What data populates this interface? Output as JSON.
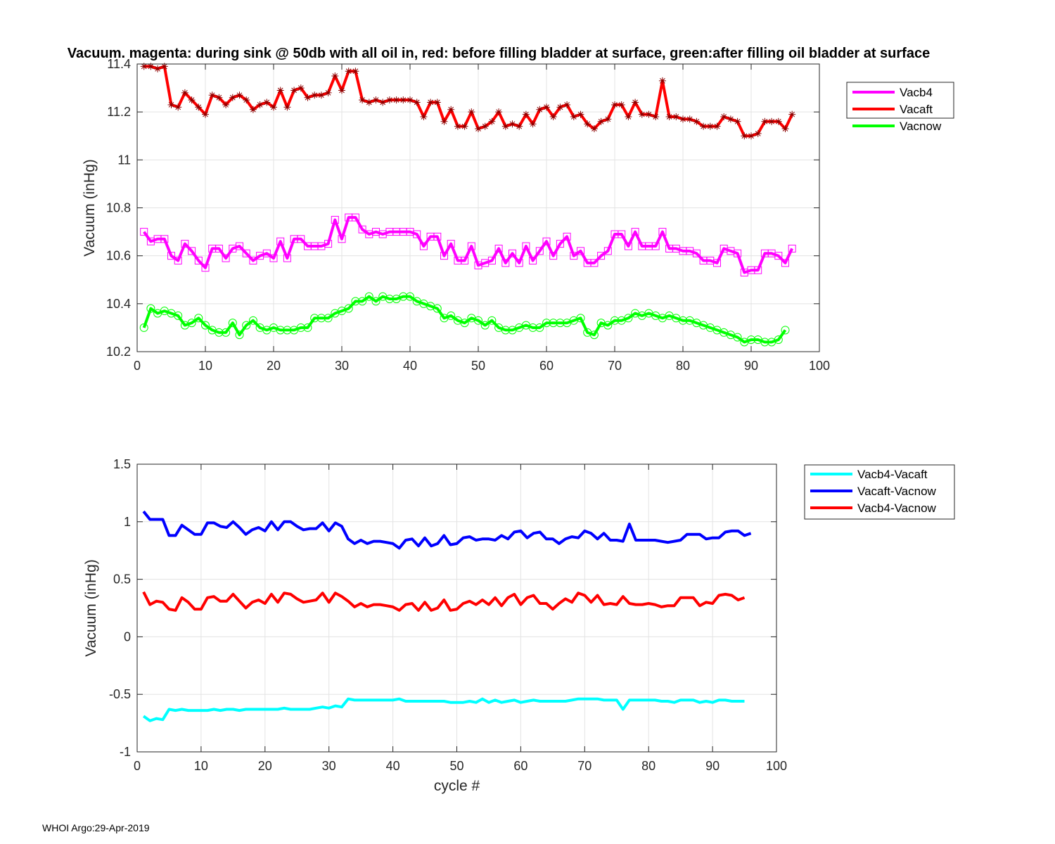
{
  "title": "Vacuum. magenta: during sink @ 50db with all oil in, red: before filling bladder at surface, green:after filling oil bladder at surface",
  "footer": "WHOI Argo:29-Apr-2019",
  "chart_data": [
    {
      "type": "line",
      "xlabel": "",
      "ylabel": "Vacuum (inHg)",
      "xlim": [
        0,
        100
      ],
      "ylim": [
        10.2,
        11.4
      ],
      "xticks": [
        0,
        10,
        20,
        30,
        40,
        50,
        60,
        70,
        80,
        90,
        100
      ],
      "yticks": [
        10.2,
        10.4,
        10.6,
        10.8,
        11,
        11.2,
        11.4
      ],
      "grid": true,
      "legend_position": "outside-top-right",
      "x_start": 1,
      "series": [
        {
          "name": "Vacb4",
          "color": "#ff00ff",
          "marker": "square",
          "values": [
            10.7,
            10.66,
            10.67,
            10.67,
            10.6,
            10.58,
            10.65,
            10.62,
            10.58,
            10.55,
            10.63,
            10.63,
            10.59,
            10.63,
            10.64,
            10.61,
            10.58,
            10.6,
            10.61,
            10.59,
            10.66,
            10.59,
            10.67,
            10.67,
            10.64,
            10.64,
            10.64,
            10.65,
            10.75,
            10.67,
            10.76,
            10.76,
            10.71,
            10.69,
            10.7,
            10.69,
            10.7,
            10.7,
            10.7,
            10.7,
            10.69,
            10.64,
            10.68,
            10.68,
            10.6,
            10.65,
            10.58,
            10.58,
            10.64,
            10.56,
            10.57,
            10.58,
            10.63,
            10.57,
            10.61,
            10.57,
            10.64,
            10.58,
            10.62,
            10.66,
            10.6,
            10.65,
            10.68,
            10.6,
            10.62,
            10.57,
            10.57,
            10.6,
            10.62,
            10.69,
            10.69,
            10.64,
            10.7,
            10.64,
            10.64,
            10.64,
            10.7,
            10.63,
            10.63,
            10.62,
            10.62,
            10.61,
            10.58,
            10.58,
            10.57,
            10.63,
            10.62,
            10.61,
            10.53,
            10.54,
            10.54,
            10.61,
            10.61,
            10.6,
            10.57,
            10.63
          ]
        },
        {
          "name": "Vacaft",
          "color": "#ff0000",
          "marker": "asterisk",
          "values": [
            11.39,
            11.39,
            11.38,
            11.39,
            11.23,
            11.22,
            11.28,
            11.25,
            11.22,
            11.19,
            11.27,
            11.26,
            11.23,
            11.26,
            11.27,
            11.25,
            11.21,
            11.23,
            11.24,
            11.22,
            11.29,
            11.22,
            11.29,
            11.3,
            11.26,
            11.27,
            11.27,
            11.28,
            11.35,
            11.29,
            11.37,
            11.37,
            11.25,
            11.24,
            11.25,
            11.24,
            11.25,
            11.25,
            11.25,
            11.25,
            11.24,
            11.18,
            11.24,
            11.24,
            11.16,
            11.21,
            11.14,
            11.14,
            11.2,
            11.13,
            11.14,
            11.16,
            11.2,
            11.14,
            11.15,
            11.14,
            11.19,
            11.15,
            11.21,
            11.22,
            11.18,
            11.22,
            11.23,
            11.18,
            11.19,
            11.15,
            11.13,
            11.16,
            11.17,
            11.23,
            11.23,
            11.18,
            11.24,
            11.19,
            11.19,
            11.18,
            11.33,
            11.18,
            11.18,
            11.17,
            11.17,
            11.16,
            11.14,
            11.14,
            11.14,
            11.18,
            11.17,
            11.16,
            11.1,
            11.1,
            11.11,
            11.16,
            11.16,
            11.16,
            11.13,
            11.19
          ]
        },
        {
          "name": "Vacnow",
          "color": "#00ff00",
          "marker": "circle",
          "values": [
            10.3,
            10.38,
            10.36,
            10.37,
            10.36,
            10.35,
            10.31,
            10.32,
            10.34,
            10.31,
            10.29,
            10.28,
            10.28,
            10.32,
            10.27,
            10.31,
            10.33,
            10.3,
            10.29,
            10.3,
            10.29,
            10.29,
            10.29,
            10.3,
            10.3,
            10.34,
            10.34,
            10.34,
            10.36,
            10.37,
            10.38,
            10.41,
            10.41,
            10.43,
            10.41,
            10.43,
            10.42,
            10.42,
            10.43,
            10.43,
            10.41,
            10.4,
            10.39,
            10.38,
            10.34,
            10.35,
            10.33,
            10.32,
            10.34,
            10.33,
            10.31,
            10.33,
            10.3,
            10.29,
            10.29,
            10.3,
            10.31,
            10.3,
            10.3,
            10.32,
            10.32,
            10.32,
            10.32,
            10.33,
            10.34,
            10.28,
            10.27,
            10.32,
            10.31,
            10.33,
            10.33,
            10.34,
            10.36,
            10.35,
            10.36,
            10.35,
            10.34,
            10.35,
            10.34,
            10.33,
            10.33,
            10.32,
            10.31,
            10.3,
            10.29,
            10.28,
            10.27,
            10.26,
            10.24,
            10.25,
            10.25,
            10.24,
            10.24,
            10.25,
            10.29
          ]
        }
      ]
    },
    {
      "type": "line",
      "xlabel": "cycle #",
      "ylabel": "Vacuum (inHg)",
      "xlim": [
        0,
        100
      ],
      "ylim": [
        -1,
        1.5
      ],
      "xticks": [
        0,
        10,
        20,
        30,
        40,
        50,
        60,
        70,
        80,
        90,
        100
      ],
      "yticks": [
        -1,
        -0.5,
        0,
        0.5,
        1,
        1.5
      ],
      "grid": true,
      "legend_position": "outside-top-right",
      "x_start": 1,
      "series": [
        {
          "name": "Vacb4-Vacaft",
          "color": "#00ffff",
          "values": [
            -0.69,
            -0.73,
            -0.71,
            -0.72,
            -0.63,
            -0.64,
            -0.63,
            -0.64,
            -0.64,
            -0.64,
            -0.64,
            -0.63,
            -0.64,
            -0.63,
            -0.63,
            -0.64,
            -0.63,
            -0.63,
            -0.63,
            -0.63,
            -0.63,
            -0.63,
            -0.62,
            -0.63,
            -0.63,
            -0.63,
            -0.63,
            -0.62,
            -0.61,
            -0.62,
            -0.6,
            -0.61,
            -0.54,
            -0.55,
            -0.55,
            -0.55,
            -0.55,
            -0.55,
            -0.55,
            -0.55,
            -0.54,
            -0.56,
            -0.56,
            -0.56,
            -0.56,
            -0.56,
            -0.56,
            -0.56,
            -0.57,
            -0.57,
            -0.57,
            -0.56,
            -0.57,
            -0.54,
            -0.57,
            -0.55,
            -0.57,
            -0.56,
            -0.55,
            -0.57,
            -0.56,
            -0.55,
            -0.56,
            -0.56,
            -0.56,
            -0.56,
            -0.56,
            -0.55,
            -0.54,
            -0.54,
            -0.54,
            -0.54,
            -0.55,
            -0.55,
            -0.55,
            -0.63,
            -0.55,
            -0.55,
            -0.55,
            -0.55,
            -0.55,
            -0.56,
            -0.56,
            -0.57,
            -0.55,
            -0.55,
            -0.55,
            -0.57,
            -0.56,
            -0.57,
            -0.55,
            -0.55,
            -0.56,
            -0.56,
            -0.56
          ]
        },
        {
          "name": "Vacaft-Vacnow",
          "color": "#0000ff",
          "values": [
            1.09,
            1.02,
            1.02,
            1.02,
            0.88,
            0.88,
            0.97,
            0.93,
            0.89,
            0.89,
            0.99,
            0.99,
            0.96,
            0.95,
            1.0,
            0.95,
            0.89,
            0.93,
            0.95,
            0.92,
            1.0,
            0.93,
            1.0,
            1.0,
            0.96,
            0.93,
            0.94,
            0.94,
            0.99,
            0.92,
            0.99,
            0.96,
            0.85,
            0.81,
            0.84,
            0.81,
            0.83,
            0.83,
            0.82,
            0.81,
            0.77,
            0.84,
            0.85,
            0.79,
            0.86,
            0.79,
            0.81,
            0.88,
            0.8,
            0.81,
            0.86,
            0.87,
            0.84,
            0.85,
            0.85,
            0.84,
            0.88,
            0.85,
            0.91,
            0.92,
            0.86,
            0.9,
            0.91,
            0.85,
            0.85,
            0.81,
            0.85,
            0.87,
            0.86,
            0.92,
            0.9,
            0.85,
            0.9,
            0.84,
            0.84,
            0.83,
            0.98,
            0.84,
            0.84,
            0.84,
            0.84,
            0.83,
            0.82,
            0.83,
            0.84,
            0.89,
            0.89,
            0.89,
            0.85,
            0.86,
            0.86,
            0.91,
            0.92,
            0.92,
            0.88,
            0.9
          ]
        },
        {
          "name": "Vacb4-Vacnow",
          "color": "#ff0000",
          "values": [
            0.39,
            0.28,
            0.31,
            0.3,
            0.24,
            0.23,
            0.34,
            0.3,
            0.24,
            0.24,
            0.34,
            0.35,
            0.31,
            0.31,
            0.37,
            0.31,
            0.25,
            0.3,
            0.32,
            0.29,
            0.37,
            0.3,
            0.38,
            0.37,
            0.33,
            0.3,
            0.31,
            0.32,
            0.38,
            0.3,
            0.38,
            0.35,
            0.31,
            0.26,
            0.29,
            0.26,
            0.28,
            0.28,
            0.27,
            0.26,
            0.23,
            0.28,
            0.29,
            0.23,
            0.3,
            0.23,
            0.25,
            0.32,
            0.23,
            0.24,
            0.29,
            0.31,
            0.28,
            0.32,
            0.28,
            0.34,
            0.27,
            0.34,
            0.37,
            0.28,
            0.34,
            0.36,
            0.29,
            0.29,
            0.24,
            0.29,
            0.33,
            0.3,
            0.38,
            0.36,
            0.3,
            0.36,
            0.28,
            0.29,
            0.28,
            0.35,
            0.29,
            0.28,
            0.28,
            0.29,
            0.28,
            0.26,
            0.27,
            0.27,
            0.34,
            0.34,
            0.34,
            0.27,
            0.3,
            0.29,
            0.36,
            0.37,
            0.36,
            0.32,
            0.34
          ]
        }
      ]
    }
  ]
}
